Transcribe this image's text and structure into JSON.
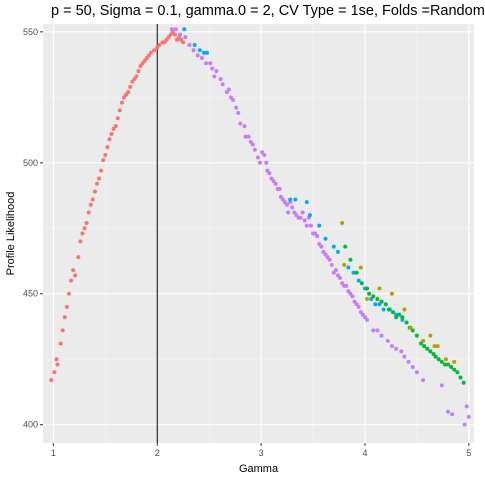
{
  "chart_data": {
    "type": "scatter",
    "title": "p = 50, Sigma = 0.1, gamma.0 = 2, CV Type = 1se, Folds =Random",
    "xlabel": "Gamma",
    "ylabel": "Profile Likelihood",
    "xlim": [
      0.9,
      5.05
    ],
    "ylim": [
      393,
      553
    ],
    "x_ticks": [
      1,
      2,
      3,
      4,
      5
    ],
    "y_ticks": [
      400,
      450,
      500,
      550
    ],
    "grid": true,
    "legend": "none",
    "vline": {
      "x": 2,
      "color": "#000000"
    },
    "panel_background": "#ebebeb",
    "series": [
      {
        "color": "#F8766D",
        "values": [
          [
            0.98,
            417
          ],
          [
            1.01,
            420
          ],
          [
            1.03,
            425
          ],
          [
            1.04,
            423
          ],
          [
            1.07,
            431
          ],
          [
            1.09,
            436
          ],
          [
            1.11,
            441
          ],
          [
            1.13,
            445
          ],
          [
            1.15,
            450
          ],
          [
            1.17,
            455
          ],
          [
            1.19,
            459
          ],
          [
            1.21,
            457
          ],
          [
            1.24,
            464
          ],
          [
            1.26,
            470
          ],
          [
            1.28,
            473
          ],
          [
            1.3,
            475
          ],
          [
            1.32,
            477
          ],
          [
            1.34,
            481
          ],
          [
            1.36,
            484
          ],
          [
            1.38,
            486
          ],
          [
            1.4,
            489
          ],
          [
            1.42,
            492
          ],
          [
            1.44,
            494
          ],
          [
            1.46,
            497
          ],
          [
            1.48,
            501
          ],
          [
            1.5,
            503
          ],
          [
            1.52,
            506
          ],
          [
            1.54,
            509
          ],
          [
            1.56,
            511
          ],
          [
            1.58,
            513
          ],
          [
            1.6,
            514
          ],
          [
            1.62,
            517
          ],
          [
            1.64,
            520
          ],
          [
            1.66,
            523
          ],
          [
            1.68,
            525
          ],
          [
            1.7,
            526
          ],
          [
            1.72,
            527
          ],
          [
            1.74,
            529
          ],
          [
            1.76,
            531
          ],
          [
            1.78,
            532
          ],
          [
            1.8,
            533
          ],
          [
            1.82,
            535
          ],
          [
            1.84,
            537
          ],
          [
            1.86,
            538
          ],
          [
            1.88,
            539
          ],
          [
            1.9,
            540
          ],
          [
            1.92,
            541
          ],
          [
            1.94,
            542
          ],
          [
            1.97,
            543
          ],
          [
            2.0,
            544
          ],
          [
            2.02,
            545
          ],
          [
            2.05,
            546
          ],
          [
            2.07,
            546
          ],
          [
            2.09,
            547
          ],
          [
            2.11,
            548
          ],
          [
            2.13,
            549
          ],
          [
            2.15,
            550
          ],
          [
            2.17,
            549
          ],
          [
            2.19,
            547
          ],
          [
            2.21,
            548
          ],
          [
            2.23,
            547
          ],
          [
            2.25,
            546
          ]
        ]
      },
      {
        "color": "#C77CFF",
        "values": [
          [
            2.14,
            551
          ],
          [
            2.18,
            551
          ],
          [
            2.22,
            549
          ],
          [
            2.27,
            548
          ],
          [
            2.31,
            545
          ],
          [
            2.35,
            543
          ],
          [
            2.39,
            541
          ],
          [
            2.43,
            540
          ],
          [
            2.47,
            538
          ],
          [
            2.51,
            538
          ],
          [
            2.53,
            536
          ],
          [
            2.55,
            533
          ],
          [
            2.57,
            535
          ],
          [
            2.61,
            532
          ],
          [
            2.63,
            530
          ],
          [
            2.67,
            527
          ],
          [
            2.69,
            528
          ],
          [
            2.71,
            525
          ],
          [
            2.73,
            524
          ],
          [
            2.76,
            521
          ],
          [
            2.78,
            519
          ],
          [
            2.8,
            515
          ],
          [
            2.84,
            514
          ],
          [
            2.85,
            510
          ],
          [
            2.88,
            510
          ],
          [
            2.9,
            508
          ],
          [
            2.92,
            507
          ],
          [
            2.94,
            505
          ],
          [
            2.97,
            502
          ],
          [
            2.99,
            500
          ],
          [
            3.01,
            504
          ],
          [
            3.03,
            503
          ],
          [
            3.05,
            500
          ],
          [
            3.06,
            497
          ],
          [
            3.08,
            496
          ],
          [
            3.1,
            494
          ],
          [
            3.12,
            493
          ],
          [
            3.14,
            492
          ],
          [
            3.16,
            490
          ],
          [
            3.18,
            490
          ],
          [
            3.19,
            487
          ],
          [
            3.21,
            486
          ],
          [
            3.23,
            485
          ],
          [
            3.25,
            484
          ],
          [
            3.26,
            481
          ],
          [
            3.28,
            485
          ],
          [
            3.3,
            483
          ],
          [
            3.32,
            481
          ],
          [
            3.34,
            480
          ],
          [
            3.36,
            479
          ],
          [
            3.38,
            479
          ],
          [
            3.4,
            481
          ],
          [
            3.42,
            478
          ],
          [
            3.44,
            476
          ],
          [
            3.46,
            479
          ],
          [
            3.48,
            476
          ],
          [
            3.5,
            473
          ],
          [
            3.52,
            473
          ],
          [
            3.54,
            472
          ],
          [
            3.56,
            469
          ],
          [
            3.58,
            468
          ],
          [
            3.6,
            466
          ],
          [
            3.62,
            465
          ],
          [
            3.64,
            464
          ],
          [
            3.66,
            463
          ],
          [
            3.68,
            461
          ],
          [
            3.7,
            458
          ],
          [
            3.72,
            459
          ],
          [
            3.74,
            457
          ],
          [
            3.76,
            456
          ],
          [
            3.78,
            454
          ],
          [
            3.8,
            453
          ],
          [
            3.82,
            453
          ],
          [
            3.84,
            451
          ],
          [
            3.86,
            450
          ],
          [
            3.88,
            449
          ],
          [
            3.9,
            447
          ],
          [
            3.92,
            446
          ],
          [
            3.94,
            445
          ],
          [
            3.96,
            443
          ],
          [
            3.98,
            442
          ],
          [
            4.0,
            441
          ],
          [
            4.02,
            440
          ],
          [
            4.08,
            436
          ],
          [
            4.12,
            436
          ],
          [
            4.16,
            434
          ],
          [
            4.22,
            432
          ],
          [
            4.26,
            430
          ],
          [
            4.3,
            429
          ],
          [
            4.35,
            428
          ],
          [
            4.38,
            426
          ],
          [
            4.42,
            424
          ],
          [
            4.46,
            422
          ],
          [
            4.5,
            420
          ],
          [
            4.56,
            417
          ],
          [
            4.74,
            415
          ],
          [
            4.8,
            405
          ],
          [
            4.84,
            404
          ],
          [
            4.96,
            400
          ],
          [
            4.98,
            407
          ],
          [
            5.0,
            403
          ]
        ]
      },
      {
        "color": "#00A9FF",
        "values": [
          [
            2.26,
            551
          ],
          [
            2.36,
            545
          ],
          [
            2.41,
            543
          ],
          [
            2.45,
            542
          ],
          [
            2.48,
            542
          ],
          [
            3.28,
            486
          ],
          [
            3.33,
            486
          ],
          [
            3.44,
            485
          ],
          [
            3.47,
            480
          ],
          [
            3.56,
            476
          ],
          [
            3.62,
            471
          ],
          [
            3.7,
            468
          ],
          [
            3.74,
            466
          ],
          [
            3.84,
            460
          ],
          [
            3.89,
            458
          ],
          [
            3.94,
            455
          ],
          [
            4.0,
            452
          ],
          [
            4.06,
            448
          ],
          [
            4.1,
            446
          ],
          [
            4.14,
            446
          ],
          [
            4.18,
            444
          ],
          [
            4.24,
            444
          ],
          [
            4.3,
            442
          ],
          [
            4.36,
            440
          ]
        ]
      },
      {
        "color": "#00BA38",
        "values": [
          [
            3.81,
            468
          ],
          [
            3.86,
            463
          ],
          [
            3.92,
            458
          ],
          [
            3.97,
            454
          ],
          [
            4.02,
            452
          ],
          [
            4.04,
            450
          ],
          [
            4.08,
            449
          ],
          [
            4.12,
            448
          ],
          [
            4.16,
            447
          ],
          [
            4.2,
            446
          ],
          [
            4.23,
            444
          ],
          [
            4.27,
            443
          ],
          [
            4.3,
            441
          ],
          [
            4.33,
            442
          ],
          [
            4.36,
            441
          ],
          [
            4.4,
            439
          ],
          [
            4.43,
            437
          ],
          [
            4.46,
            436
          ],
          [
            4.5,
            434
          ],
          [
            4.54,
            431
          ],
          [
            4.57,
            430
          ],
          [
            4.6,
            429
          ],
          [
            4.63,
            428
          ],
          [
            4.66,
            427
          ],
          [
            4.68,
            426
          ],
          [
            4.71,
            425
          ],
          [
            4.74,
            424
          ],
          [
            4.77,
            423
          ],
          [
            4.8,
            423
          ],
          [
            4.83,
            422
          ],
          [
            4.86,
            421
          ],
          [
            4.89,
            420
          ],
          [
            4.92,
            418
          ],
          [
            4.95,
            416
          ]
        ]
      },
      {
        "color": "#B79F00",
        "values": [
          [
            3.78,
            477
          ],
          [
            3.8,
            461
          ],
          [
            3.96,
            460
          ],
          [
            4.02,
            448
          ],
          [
            4.14,
            452
          ],
          [
            4.26,
            450
          ],
          [
            4.38,
            444
          ],
          [
            4.44,
            437
          ],
          [
            4.56,
            432
          ],
          [
            4.63,
            434
          ],
          [
            4.67,
            430
          ],
          [
            4.7,
            430
          ],
          [
            4.78,
            425
          ],
          [
            4.86,
            424
          ]
        ]
      }
    ]
  }
}
